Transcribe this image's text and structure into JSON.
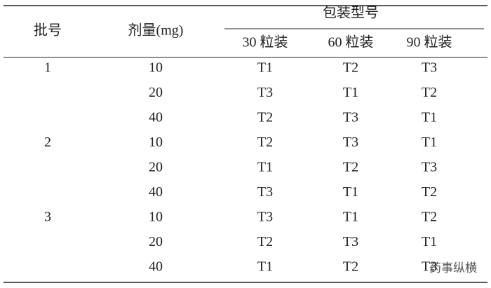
{
  "table": {
    "header": {
      "batch": "批号",
      "dose": "剂量(mg)",
      "group": "包装型号",
      "packs": [
        "30 粒装",
        "60 粒装",
        "90 粒装"
      ]
    },
    "batches": [
      {
        "label": "1",
        "rows": [
          {
            "dose": "10",
            "packs": [
              "T1",
              "T2",
              "T3"
            ]
          },
          {
            "dose": "20",
            "packs": [
              "T3",
              "T1",
              "T2"
            ]
          },
          {
            "dose": "40",
            "packs": [
              "T2",
              "T3",
              "T1"
            ]
          }
        ]
      },
      {
        "label": "2",
        "rows": [
          {
            "dose": "10",
            "packs": [
              "T2",
              "T3",
              "T1"
            ]
          },
          {
            "dose": "20",
            "packs": [
              "T1",
              "T2",
              "T3"
            ]
          },
          {
            "dose": "40",
            "packs": [
              "T3",
              "T1",
              "T2"
            ]
          }
        ]
      },
      {
        "label": "3",
        "rows": [
          {
            "dose": "10",
            "packs": [
              "T3",
              "T1",
              "T2"
            ]
          },
          {
            "dose": "20",
            "packs": [
              "T2",
              "T3",
              "T1"
            ]
          },
          {
            "dose": "40",
            "packs": [
              "T1",
              "T2",
              "T3"
            ]
          }
        ]
      }
    ]
  },
  "watermark": "药事纵横"
}
